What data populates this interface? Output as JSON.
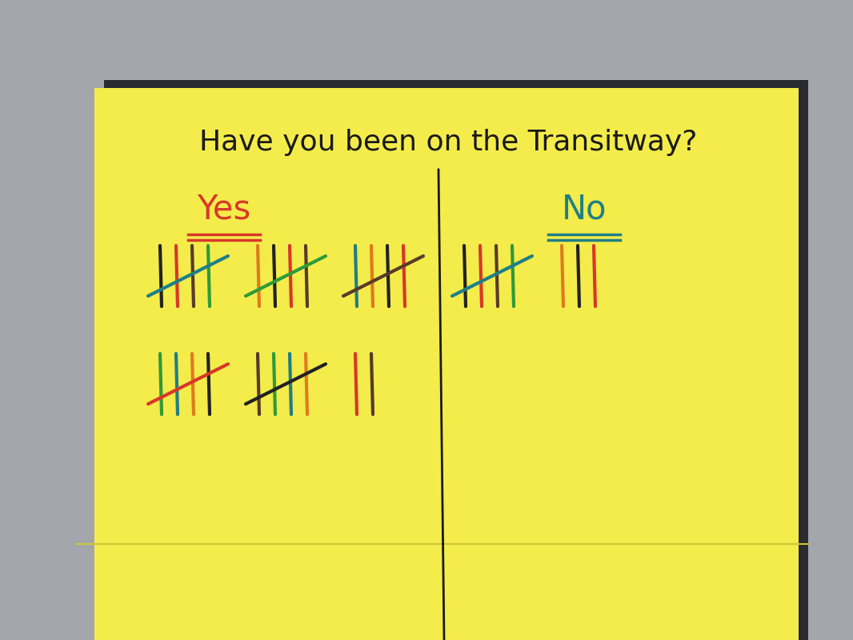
{
  "chart_data": {
    "type": "tally",
    "title": "Have you been on the Transitway?",
    "categories": [
      "Yes",
      "No"
    ],
    "values": [
      27,
      8
    ],
    "colors": [
      "#d8382a",
      "#1f7f86"
    ],
    "tick_labels": false
  }
}
